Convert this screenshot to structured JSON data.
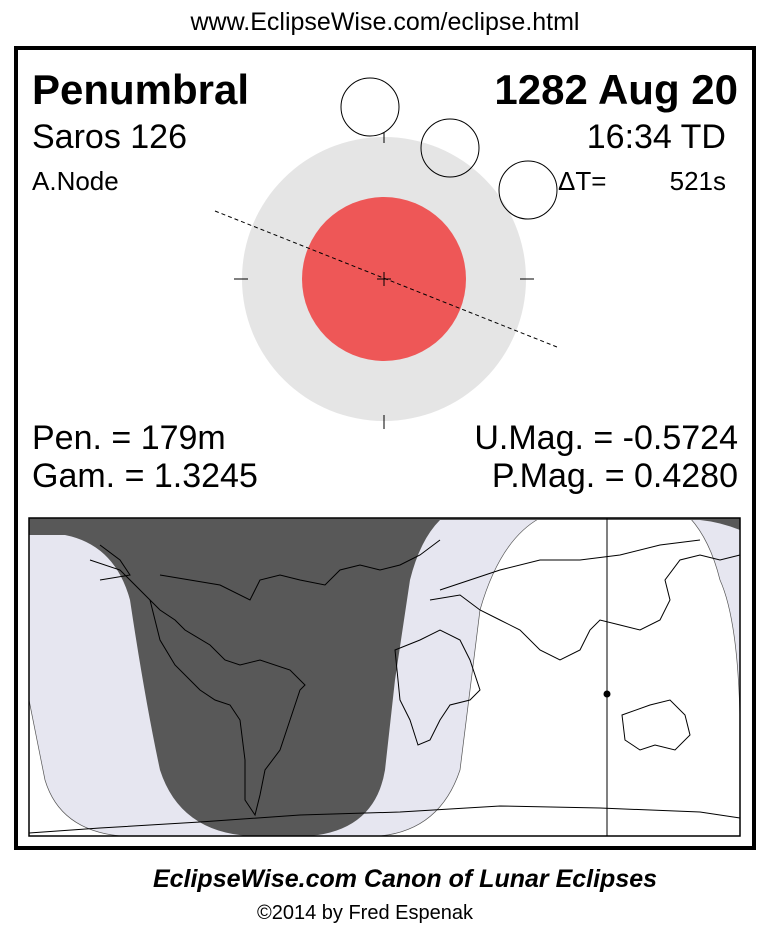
{
  "url": "www.EclipseWise.com/eclipse.html",
  "eclipse": {
    "type": "Penumbral",
    "date": "1282 Aug 20",
    "saros": "Saros 126",
    "time": "16:34 TD",
    "node": "A.Node",
    "delta_t_label": "ΔT=",
    "delta_t_value": "521s",
    "pen_duration": "Pen. = 179m",
    "gamma": "Gam. = 1.3245",
    "umbral_mag": "U.Mag. = -0.5724",
    "penumbral_mag": "P.Mag. = 0.4280"
  },
  "colors": {
    "penumbra": "#e5e5e5",
    "umbra": "#ee5757",
    "map_no_eclipse": "#585858",
    "map_partial": "#e6e6f0",
    "map_visible": "#ffffff"
  },
  "footer": {
    "title": "EclipseWise.com Canon of Lunar Eclipses",
    "copyright": "©2014 by Fred Espenak"
  }
}
